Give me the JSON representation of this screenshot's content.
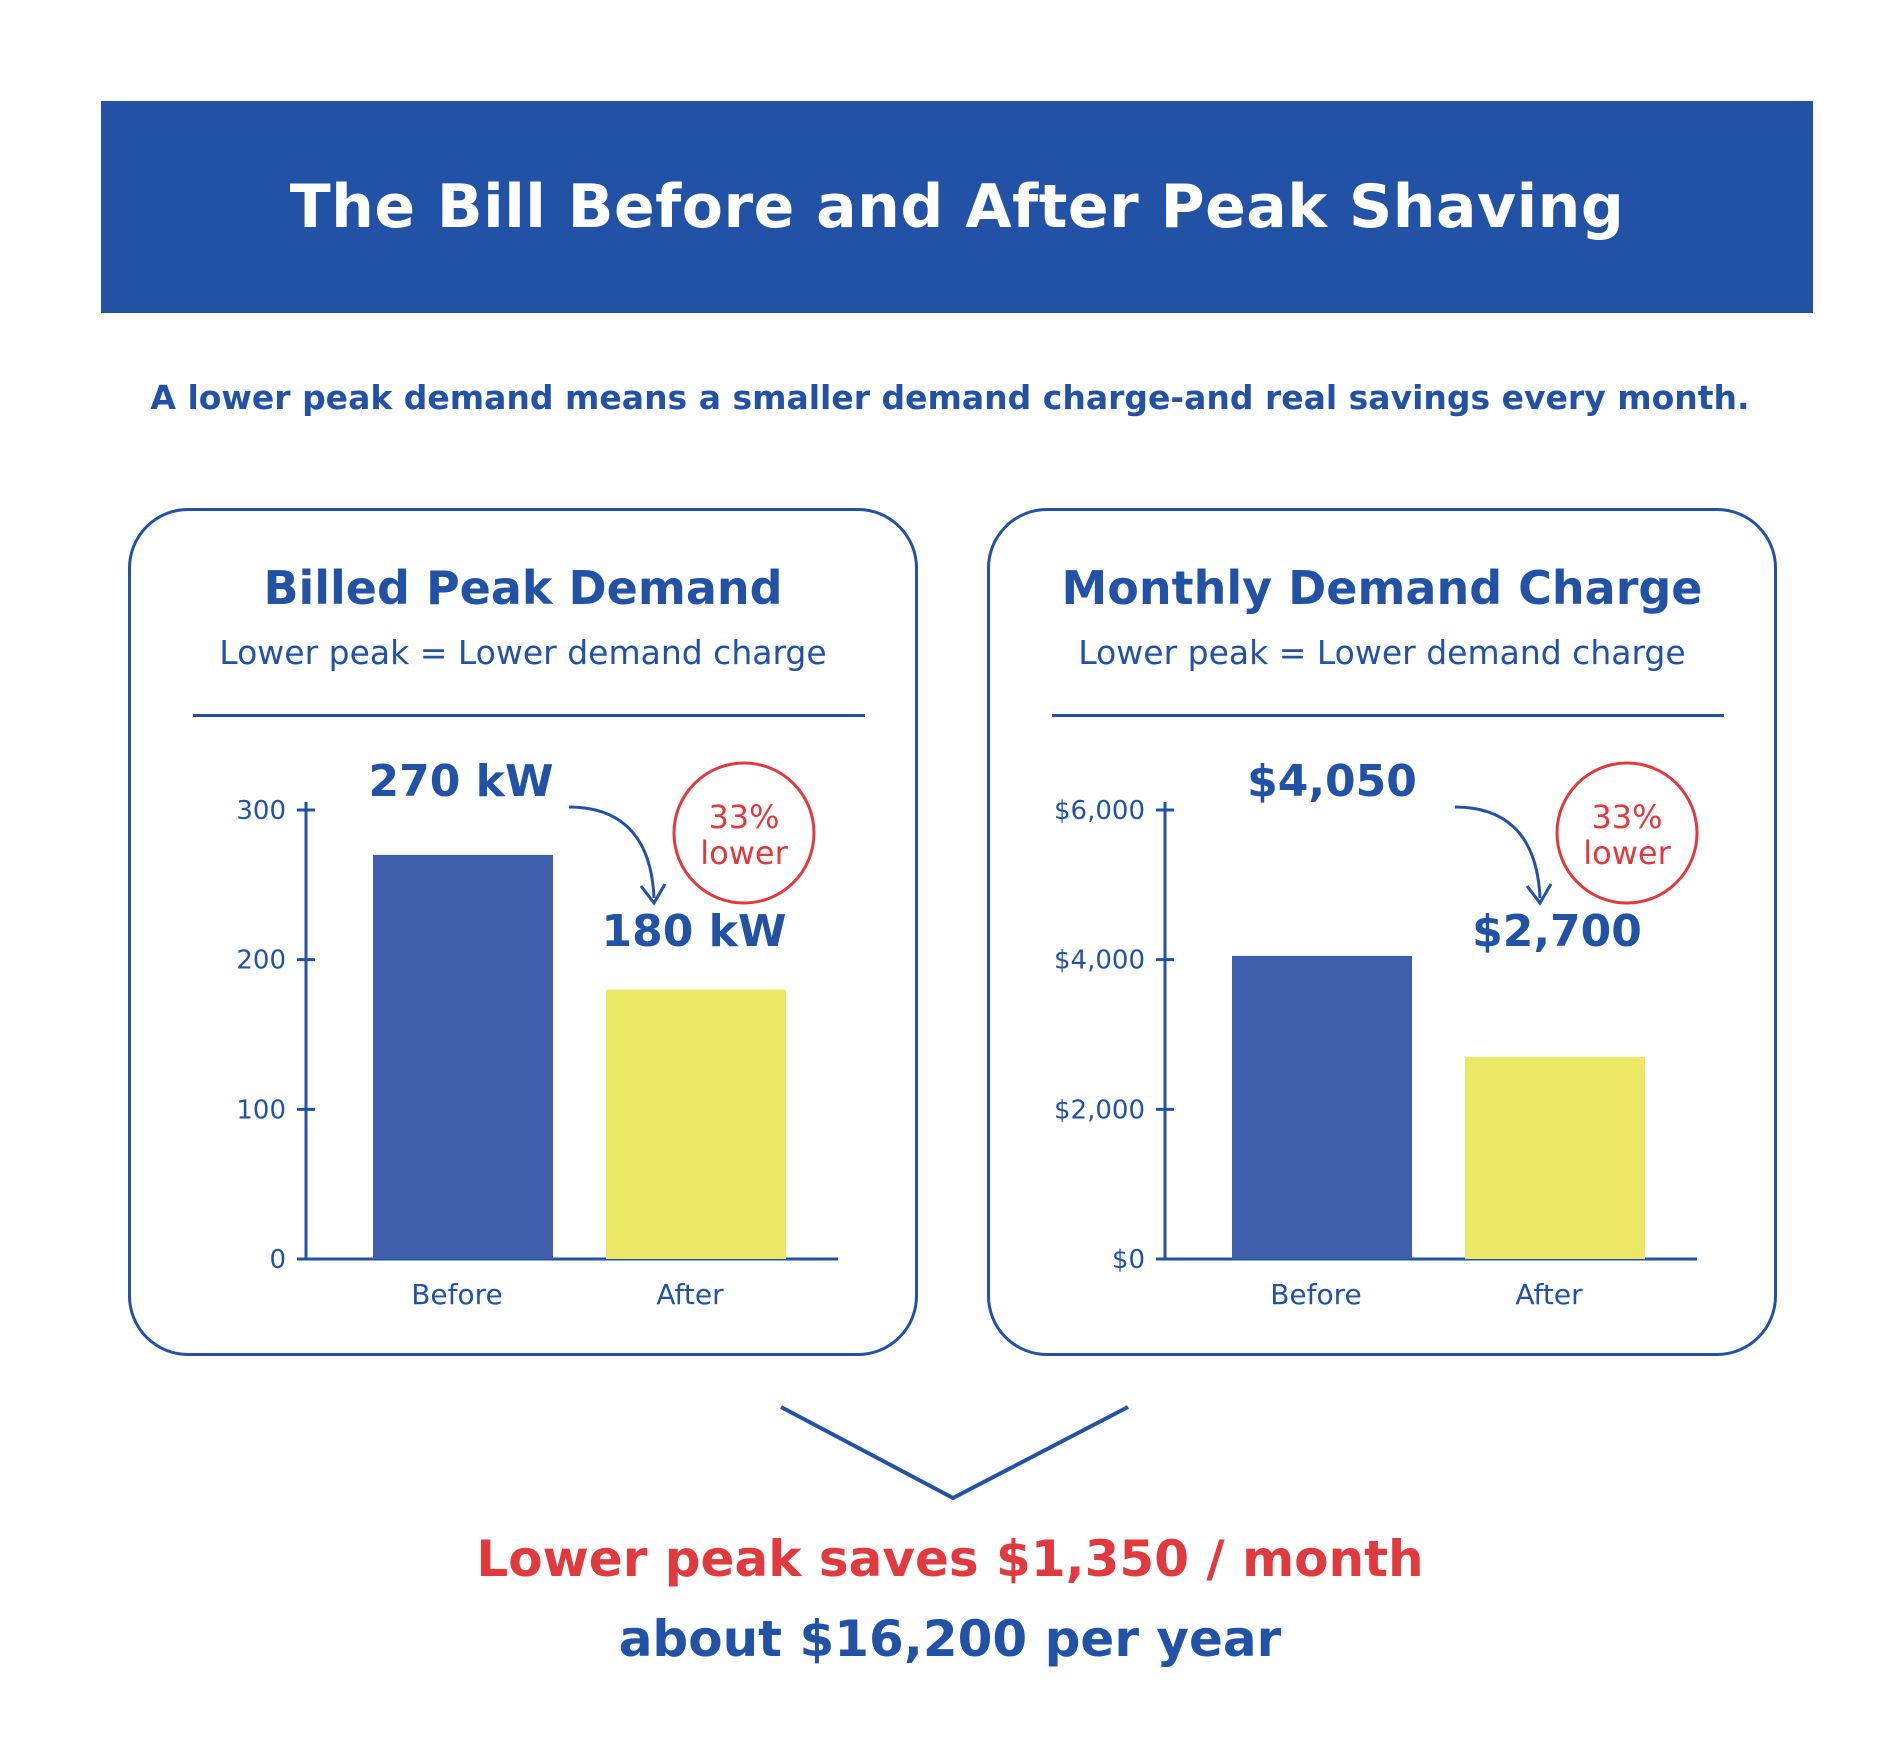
{
  "header": {
    "title": "The Bill Before and After Peak Shaving"
  },
  "subtitle": "A lower peak demand means a smaller demand charge-and real savings every month.",
  "colors": {
    "primary": "#2152a5",
    "before_bar": "#3e5eab",
    "after_bar": "#ece764",
    "accent": "#e0393e"
  },
  "chart_data": [
    {
      "type": "bar",
      "title": "Billed Peak Demand",
      "subtitle": "Lower peak = Lower demand charge",
      "categories": [
        "Before",
        "After"
      ],
      "values": [
        270,
        180
      ],
      "value_labels": [
        "270 kW",
        "180 kW"
      ],
      "ylim": [
        0,
        300
      ],
      "yticks": [
        0,
        100,
        200,
        300
      ],
      "ytick_labels": [
        "0",
        "100",
        "200",
        "300"
      ],
      "badge": {
        "line1": "33%",
        "line2": "lower"
      }
    },
    {
      "type": "bar",
      "title": "Monthly Demand Charge",
      "subtitle": "Lower peak = Lower demand charge",
      "categories": [
        "Before",
        "After"
      ],
      "values": [
        4050,
        2700
      ],
      "value_labels": [
        "$4,050",
        "$2,700"
      ],
      "ylim": [
        0,
        6000
      ],
      "yticks": [
        0,
        2000,
        4000,
        6000
      ],
      "ytick_labels": [
        "$0",
        "$2,000",
        "$4,000",
        "$6,000"
      ],
      "badge": {
        "line1": "33%",
        "line2": "lower"
      }
    }
  ],
  "result": {
    "line1": "Lower peak saves $1,350 / month",
    "line2": "about $16,200 per year"
  }
}
